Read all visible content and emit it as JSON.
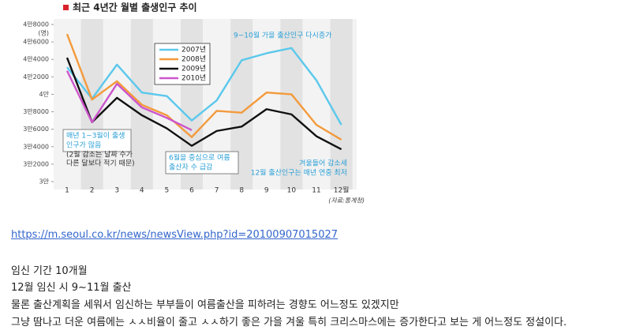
{
  "chart_data": {
    "type": "line",
    "title": "최근 4년간 월별 출생인구 추이",
    "y_unit": "(명)",
    "source": "(자료:통계청)",
    "categories": [
      "1",
      "2",
      "3",
      "4",
      "5",
      "6",
      "7",
      "8",
      "9",
      "10",
      "11",
      "12월"
    ],
    "ylim": [
      30000,
      48000
    ],
    "yticks": [
      {
        "value": 30000,
        "label": "3만"
      },
      {
        "value": 32000,
        "label": "3만2000"
      },
      {
        "value": 34000,
        "label": "3만4000"
      },
      {
        "value": 36000,
        "label": "3만6000"
      },
      {
        "value": 38000,
        "label": "3만8000"
      },
      {
        "value": 40000,
        "label": "4만"
      },
      {
        "value": 42000,
        "label": "4만2000"
      },
      {
        "value": 44000,
        "label": "4만4000"
      },
      {
        "value": 46000,
        "label": "4만6000"
      },
      {
        "value": 48000,
        "label": "4만8000"
      }
    ],
    "series": [
      {
        "name": "2007년",
        "color": "#5bc8ec",
        "values": [
          43100,
          39500,
          43400,
          40200,
          39800,
          37000,
          39300,
          43900,
          44700,
          45300,
          41600,
          36500
        ]
      },
      {
        "name": "2008년",
        "color": "#f39a3c",
        "values": [
          46900,
          39400,
          41500,
          38800,
          37600,
          35100,
          38100,
          37900,
          40200,
          40000,
          36500,
          34800
        ]
      },
      {
        "name": "2009년",
        "color": "#111111",
        "values": [
          44200,
          36800,
          39600,
          37600,
          36100,
          34100,
          35800,
          36300,
          38300,
          37700,
          35200,
          33700
        ]
      },
      {
        "name": "2010년",
        "color": "#cc55cc",
        "values": [
          42700,
          36800,
          41200,
          38500,
          37300,
          35900,
          null,
          null,
          null,
          null,
          null,
          null
        ]
      }
    ],
    "annotations": [
      {
        "lines": [
          "9~10월 가을 출산인구 다시증가"
        ]
      },
      {
        "lines": [
          "매년 1~3월이 출생",
          "인구가 많음"
        ]
      },
      {
        "lines": [
          "(2월 감소는  날짜 수가",
          "다른 달보다 적기 때문)"
        ]
      },
      {
        "lines": [
          "6월을 중심으로 여름",
          "출산자 수 급감"
        ]
      },
      {
        "lines": [
          "겨울들어 감소세",
          "12월 출산인구는 매년 연중 최저"
        ]
      }
    ]
  },
  "post": {
    "link": "https://m.seoul.co.kr/news/newsView.php?id=20100907015027",
    "paragraphs": [
      "임신 기간 10개월",
      "12월 임신 시 9~11월 출산",
      "물론 출산계획을 세워서 임신하는 부부들이 여름출산을 피하려는 경향도 어느정도 있겠지만",
      "그냥 땀나고 더운 여름에는 ㅅㅅ비율이 줄고 ㅅㅅ하기 좋은 가을 겨울 특히 크리스마스에는 증가한다고 보는 게 어느정도 정설이다."
    ]
  }
}
